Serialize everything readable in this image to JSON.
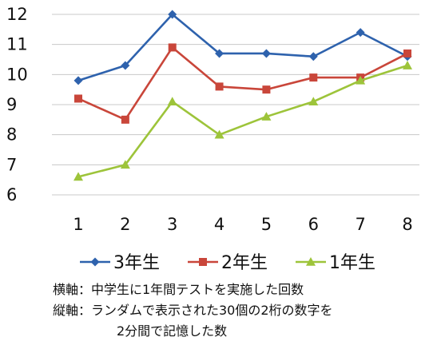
{
  "chart_data": {
    "type": "line",
    "categories": [
      "1",
      "2",
      "3",
      "4",
      "5",
      "6",
      "7",
      "8"
    ],
    "series": [
      {
        "name": "3年生",
        "color": "#2e62ad",
        "marker": "diamond",
        "values": [
          9.8,
          10.3,
          12.0,
          10.7,
          10.7,
          10.6,
          11.4,
          10.6
        ]
      },
      {
        "name": "2年生",
        "color": "#c9463a",
        "marker": "square",
        "values": [
          9.2,
          8.5,
          10.9,
          9.6,
          9.5,
          9.9,
          9.9,
          10.7
        ]
      },
      {
        "name": "1年生",
        "color": "#9dc43a",
        "marker": "triangle",
        "values": [
          6.6,
          7.0,
          9.1,
          8.0,
          8.6,
          9.1,
          9.8,
          10.3
        ]
      }
    ],
    "ylim": [
      6,
      12
    ],
    "yticks": [
      "6",
      "7",
      "8",
      "9",
      "10",
      "11",
      "12"
    ],
    "grid": true,
    "legend_position": "bottom"
  },
  "caption": {
    "x_axis_note": "横軸：中学生に1年間テストを実施した回数",
    "y_axis_note_line1": "縦軸：ランダムで表示された30個の2桁の数字を",
    "y_axis_note_line2": "2分間で記憶した数"
  }
}
